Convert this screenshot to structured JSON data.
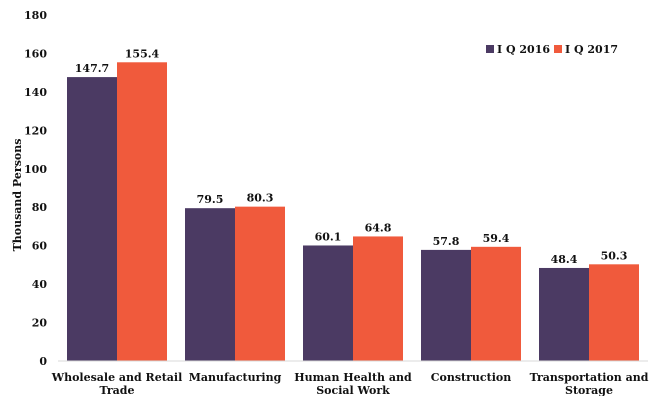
{
  "chart_data": {
    "type": "bar",
    "categories": [
      [
        "Wholesale and Retail",
        "Trade"
      ],
      [
        "Manufacturing"
      ],
      [
        "Human Health and",
        "Social Work"
      ],
      [
        "Construction"
      ],
      [
        "Transportation and",
        "Storage"
      ]
    ],
    "series": [
      {
        "name": "I Q 2016",
        "color": "#4b3a63",
        "values": [
          147.7,
          79.5,
          60.1,
          57.8,
          48.4
        ]
      },
      {
        "name": "I Q 2017",
        "color": "#f05a3c",
        "values": [
          155.4,
          80.3,
          64.8,
          59.4,
          50.3
        ]
      }
    ],
    "data_labels": [
      [
        "147.7",
        "79.5",
        "60.1",
        "57.8",
        "48.4"
      ],
      [
        "155.4",
        "80.3",
        "64.8",
        "59.4",
        "50.3"
      ]
    ],
    "ylabel": "Thousand Persons",
    "ylim": [
      0,
      180
    ],
    "yticks": [
      "0",
      "20",
      "40",
      "60",
      "80",
      "100",
      "120",
      "140",
      "160",
      "180"
    ],
    "grid": false,
    "legend": "top-right"
  }
}
